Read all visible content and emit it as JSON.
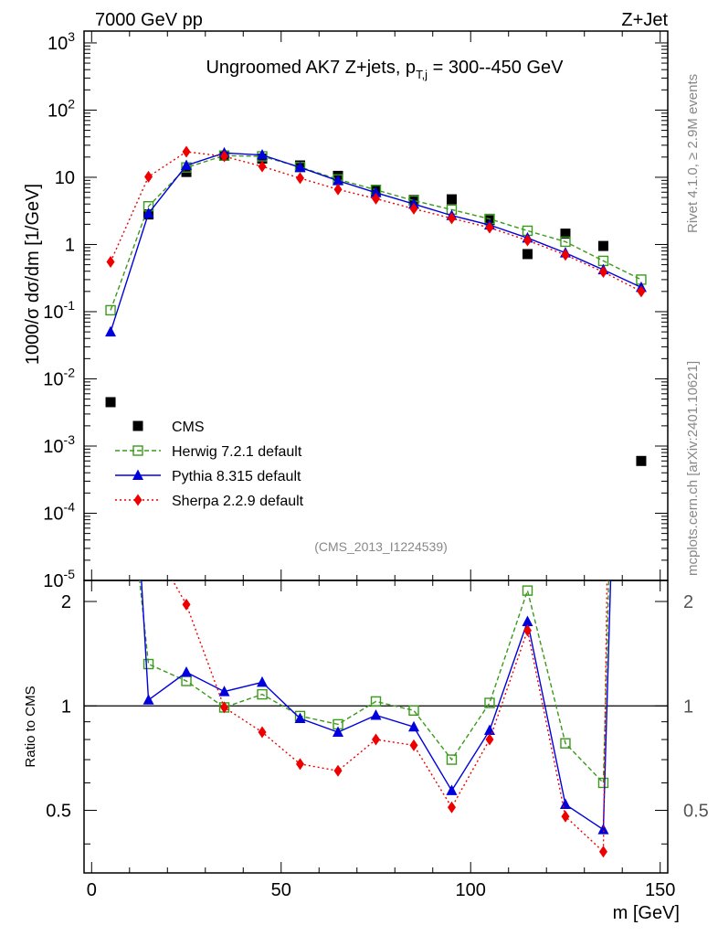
{
  "header": {
    "left": "7000 GeV pp",
    "right": "Z+Jet"
  },
  "side_labels": {
    "rivet": "Rivet 4.1.0, ≥ 2.9M events",
    "mcplots": "mcplots.cern.ch [arXiv:2401.10621]"
  },
  "colors": {
    "cms": "#000000",
    "herwig": "#3a9a1a",
    "pythia": "#0000dd",
    "sherpa": "#ee0000",
    "watermark": "#888888"
  },
  "chart_data": {
    "type": "line",
    "title": "Ungroomed AK7 Z+jets, p_{T,j} = 300--450 GeV",
    "title_parts": {
      "pre": "Ungroomed AK7 Z+jets, p",
      "sub": "T,j",
      "post": " = 300--450 GeV"
    },
    "analysis": "(CMS_2013_I1224539)",
    "xlabel": "m [GeV]",
    "ylabel": "1000/σ  dσ/dm [1/GeV]",
    "ratio_ylabel": "Ratio to CMS",
    "xlim": [
      -2,
      152
    ],
    "ylim_log": [
      1e-05,
      1500
    ],
    "ratio_ylim": [
      0.33,
      2.3
    ],
    "x_ticks": [
      0,
      50,
      100,
      150
    ],
    "y_tick_labels": [
      "10^{-5}",
      "10^{-4}",
      "10^{-3}",
      "10^{-2}",
      "10^{-1}",
      "1",
      "10",
      "10^{2}",
      "10^{3}"
    ],
    "ratio_tick_labels": [
      "0.5",
      "1",
      "2"
    ],
    "x": [
      5,
      15,
      25,
      35,
      45,
      55,
      65,
      75,
      85,
      95,
      105,
      115,
      125,
      135,
      145
    ],
    "series": [
      {
        "name": "CMS",
        "style": "data",
        "values": [
          0.0045,
          2.8,
          12,
          21,
          19,
          15,
          10.5,
          6.3,
          4.6,
          4.7,
          2.3,
          0.72,
          1.45,
          0.95,
          0.0006
        ]
      },
      {
        "name": "Herwig 7.2.1 default",
        "style": "herwig",
        "values": [
          0.105,
          3.7,
          14,
          21,
          20.5,
          14.2,
          9.3,
          6.5,
          4.5,
          3.3,
          2.4,
          1.6,
          1.1,
          0.57,
          0.3
        ]
      },
      {
        "name": "Pythia 8.315 default",
        "style": "pythia",
        "values": [
          0.05,
          2.9,
          15,
          23,
          21.5,
          14,
          8.9,
          5.9,
          4.0,
          2.7,
          1.95,
          1.25,
          0.75,
          0.42,
          0.23
        ]
      },
      {
        "name": "Sherpa 2.2.9 default",
        "style": "sherpa",
        "values": [
          0.55,
          10.2,
          24,
          20.5,
          14.5,
          9.7,
          6.6,
          4.8,
          3.4,
          2.45,
          1.78,
          1.15,
          0.7,
          0.39,
          0.2
        ]
      }
    ],
    "ratio_series": [
      {
        "name": "Herwig 7.2.1 default",
        "style": "herwig",
        "x": [
          15,
          25,
          35,
          45,
          55,
          65,
          75,
          85,
          95,
          105,
          115,
          125,
          135
        ],
        "values": [
          1.32,
          1.18,
          0.99,
          1.08,
          0.935,
          0.885,
          1.03,
          0.97,
          0.7,
          1.02,
          2.15,
          0.78,
          0.6
        ]
      },
      {
        "name": "Pythia 8.315 default",
        "style": "pythia",
        "x": [
          15,
          25,
          35,
          45,
          55,
          65,
          75,
          85,
          95,
          105,
          115,
          125,
          135
        ],
        "values": [
          1.04,
          1.25,
          1.1,
          1.17,
          0.92,
          0.84,
          0.94,
          0.87,
          0.57,
          0.85,
          1.75,
          0.52,
          0.44
        ]
      },
      {
        "name": "Sherpa 2.2.9 default",
        "style": "sherpa",
        "x": [
          25,
          35,
          45,
          55,
          65,
          75,
          85,
          95,
          105,
          115,
          125,
          135
        ],
        "values": [
          1.96,
          0.99,
          0.84,
          0.68,
          0.65,
          0.8,
          0.77,
          0.51,
          0.8,
          1.65,
          0.48,
          0.38
        ]
      }
    ],
    "legend": {
      "position": "lower-left",
      "entries": [
        "CMS",
        "Herwig 7.2.1 default",
        "Pythia 8.315 default",
        "Sherpa 2.2.9 default"
      ]
    }
  }
}
